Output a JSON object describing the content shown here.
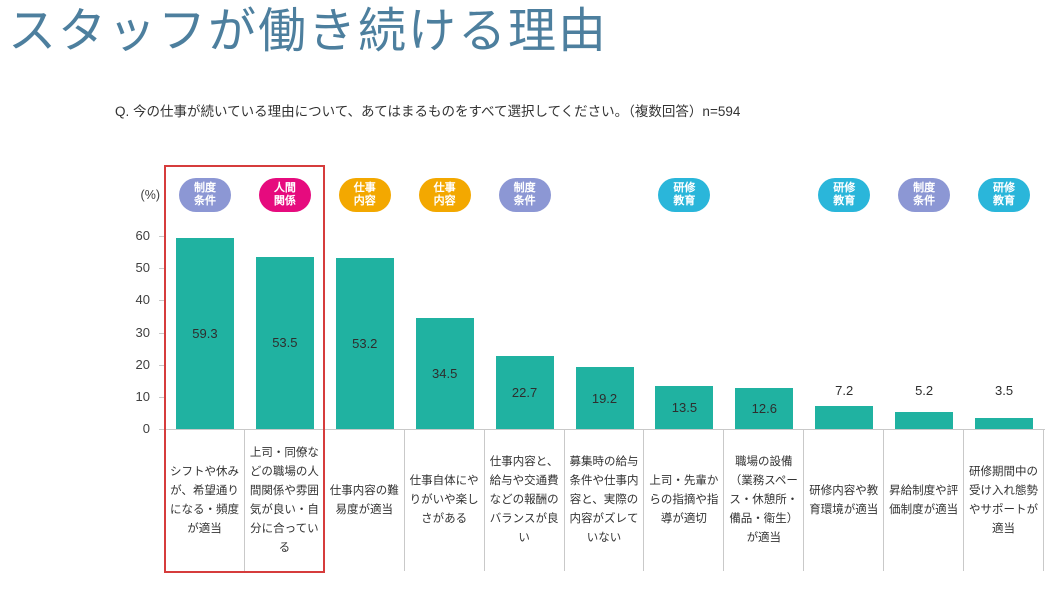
{
  "page": {
    "title": "スタッフが働き続ける理由",
    "question": "Q. 今の仕事が続いている理由について、あてはまるものをすべて選択してください。（複数回答）n=594",
    "y_axis_unit": "(%)"
  },
  "colors": {
    "title": "#4d7f9e",
    "bar": "#20b2a1",
    "highlight_box": "#d63c3c",
    "axis": "#c9c9c9"
  },
  "badge_colors": {
    "制度条件": "#8c97d4",
    "人間関係": "#e60b7e",
    "仕事内容": "#f3a800",
    "研修教育": "#2ab6da"
  },
  "chart_data": {
    "type": "bar",
    "title": "スタッフが働き続ける理由",
    "ylabel": "(%)",
    "ylim": [
      0,
      60
    ],
    "yticks": [
      0,
      10,
      20,
      30,
      40,
      50,
      60
    ],
    "grid": false,
    "legend": "none",
    "sample_size": "n=594",
    "categories": [
      "シフトや休みが、希望通りになる・頻度が適当",
      "上司・同僚などの職場の人間関係や雰囲気が良い・自分に合っている",
      "仕事内容の難易度が適当",
      "仕事自体にやりがいや楽しさがある",
      "仕事内容と、給与や交通費などの報酬のバランスが良い",
      "募集時の給与条件や仕事内容と、実際の内容がズレていない",
      "上司・先輩からの指摘や指導が適切",
      "職場の設備（業務スペース・休憩所・備品・衛生）が適当",
      "研修内容や教育環境が適当",
      "昇給制度や評価制度が適当",
      "研修期間中の受け入れ態勢やサポートが適当"
    ],
    "values": [
      59.3,
      53.5,
      53.2,
      34.5,
      22.7,
      19.2,
      13.5,
      12.6,
      7.2,
      5.2,
      3.5
    ],
    "badges": [
      "制度条件",
      "人間関係",
      "仕事内容",
      "仕事内容",
      "制度条件",
      null,
      "研修教育",
      null,
      "研修教育",
      "制度条件",
      "研修教育"
    ],
    "highlighted_bars": [
      0,
      1
    ]
  }
}
